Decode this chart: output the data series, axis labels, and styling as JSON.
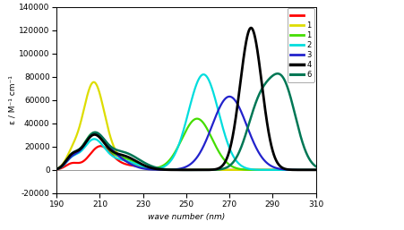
{
  "xlabel": "wave number (nm)",
  "ylabel": "ε / M⁻¹ cm⁻¹",
  "xlim": [
    190,
    310
  ],
  "ylim": [
    -20000,
    140000
  ],
  "xticks": [
    190,
    210,
    230,
    250,
    270,
    290,
    310
  ],
  "yticks": [
    -20000,
    0,
    20000,
    40000,
    60000,
    80000,
    100000,
    120000,
    140000
  ],
  "legend_labels": [
    "",
    "1",
    "2",
    "3",
    "4",
    "6"
  ],
  "colors": {
    "red": "#ff0000",
    "yellow": "#dddd00",
    "lime": "#44dd00",
    "cyan": "#00dddd",
    "blue": "#2222cc",
    "black": "#000000",
    "teal": "#007755"
  },
  "background_color": "#ffffff"
}
